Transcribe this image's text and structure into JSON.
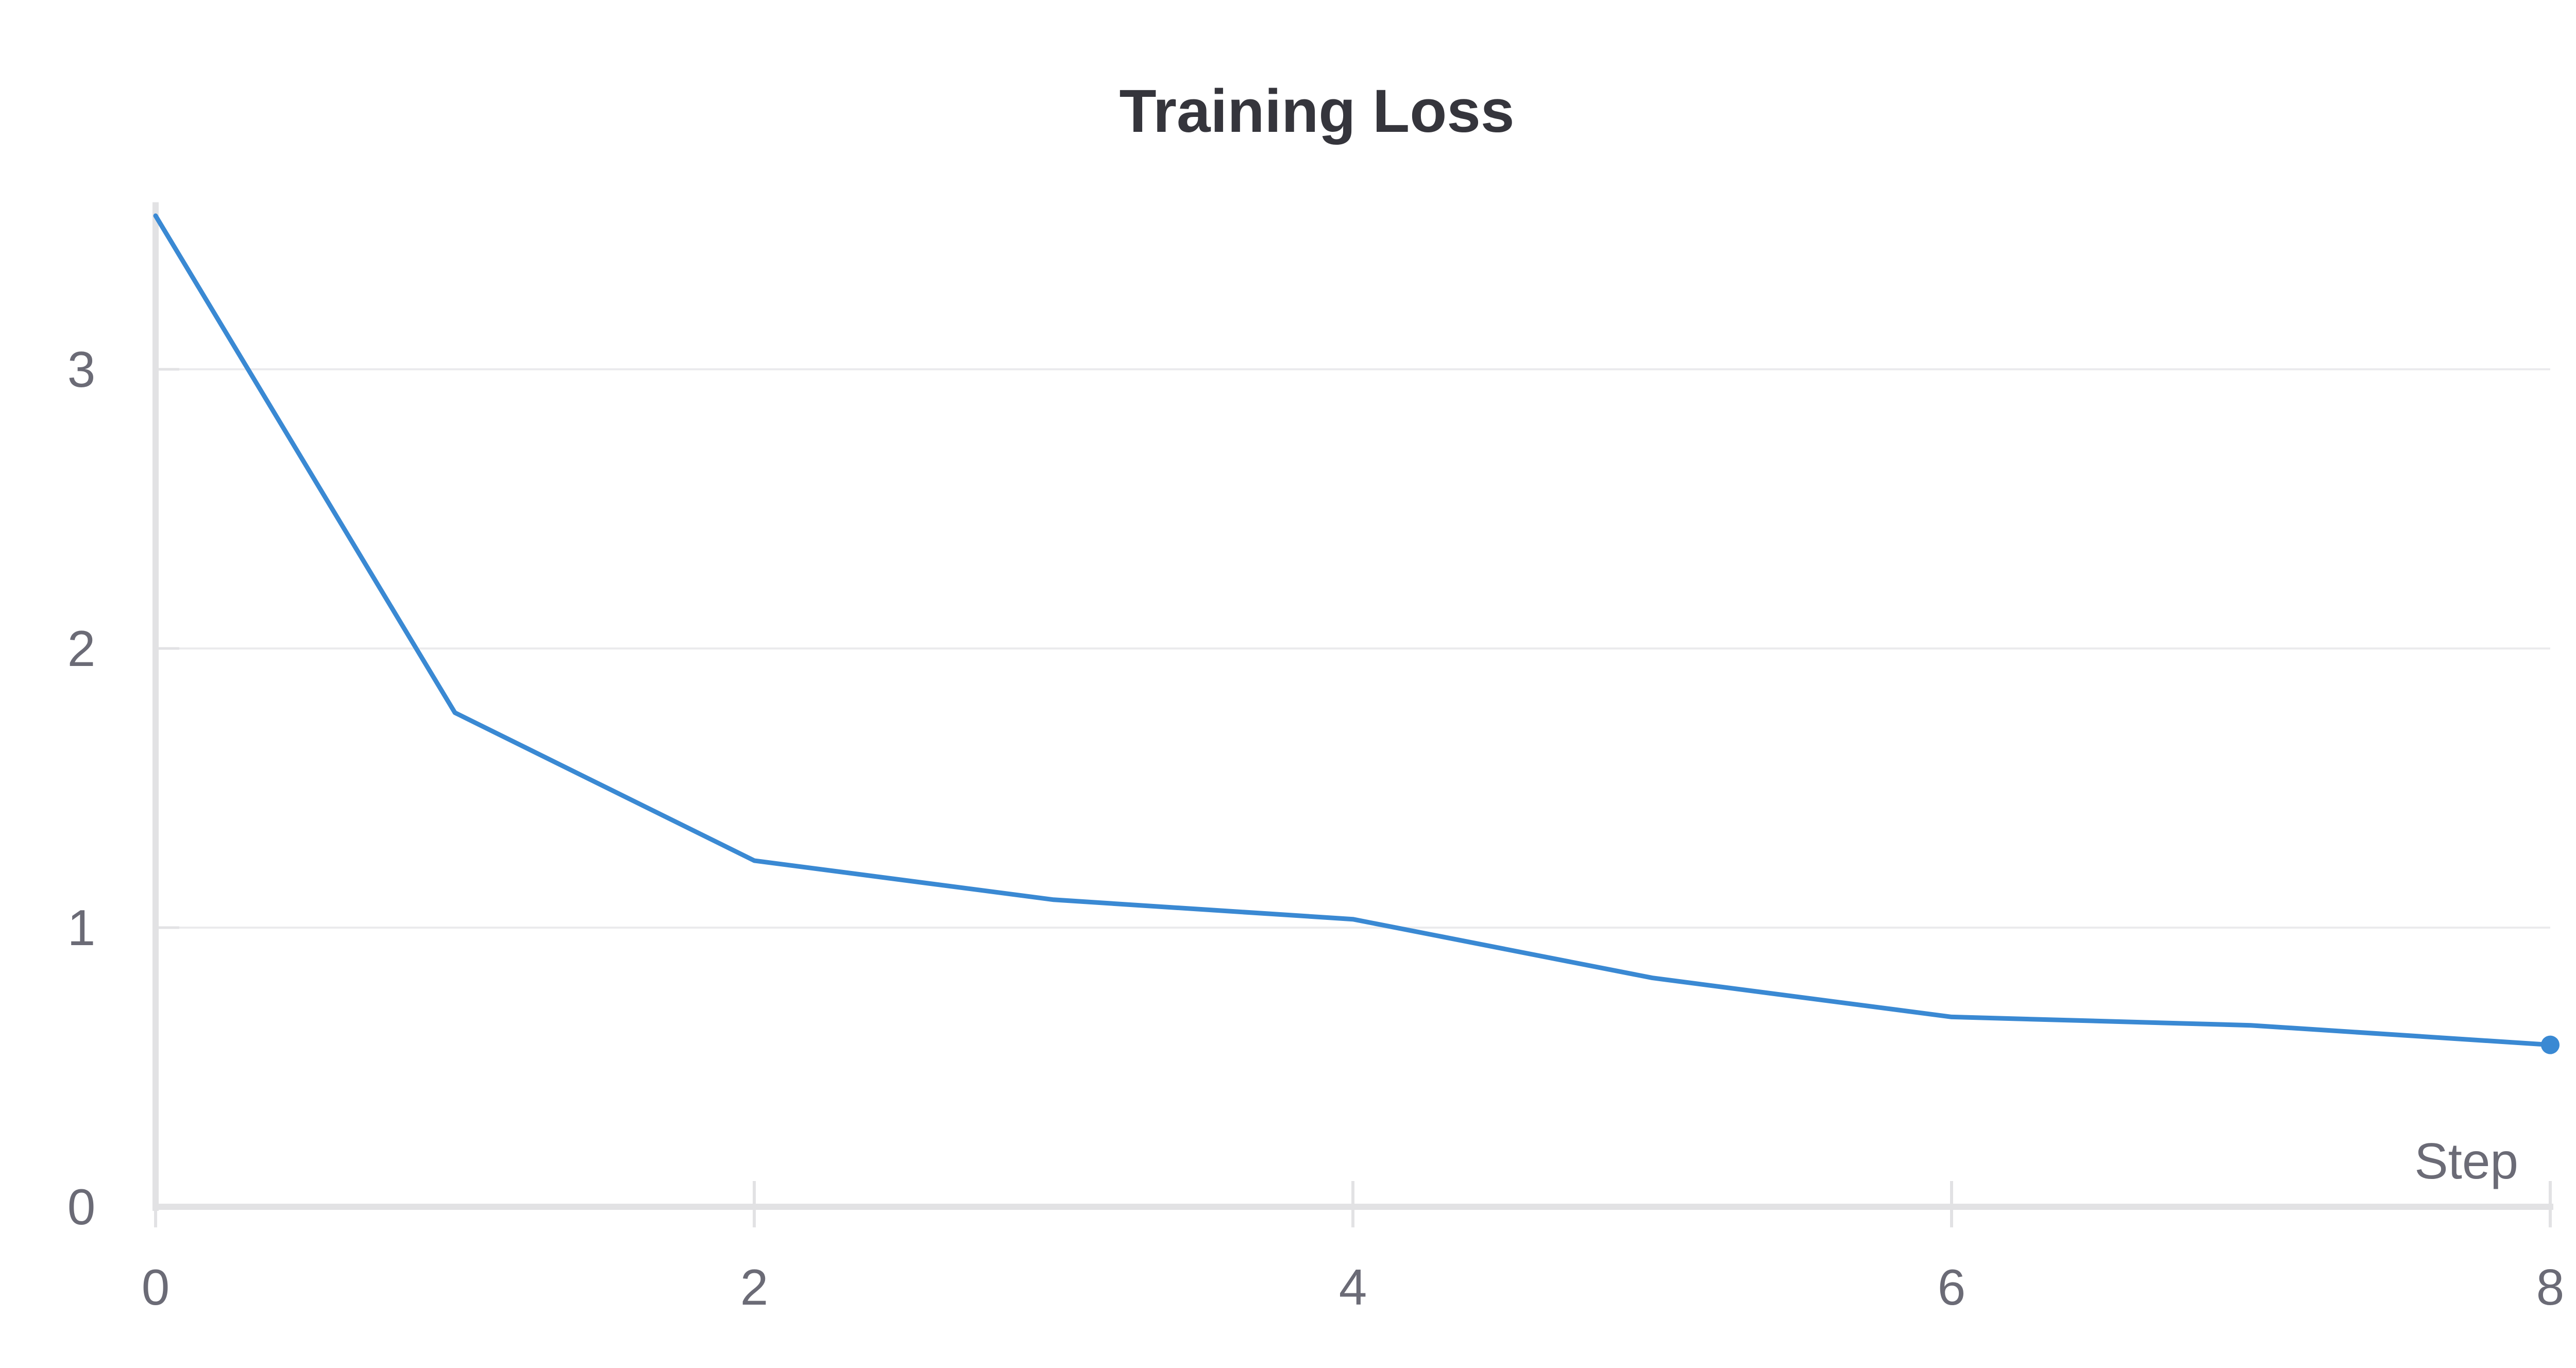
{
  "chart_data": {
    "type": "line",
    "title": "Training Loss",
    "xlabel": "Step",
    "ylabel": "",
    "xlim": [
      0,
      8
    ],
    "ylim": [
      0,
      3.58
    ],
    "xticks": [
      0,
      2,
      4,
      6,
      8
    ],
    "yticks": [
      0,
      1,
      2,
      3
    ],
    "grid": true,
    "series": [
      {
        "x": [
          0,
          1,
          2,
          3,
          4,
          5,
          6,
          7,
          8
        ],
        "values": [
          3.55,
          1.77,
          1.24,
          1.1,
          1.03,
          0.82,
          0.68,
          0.65,
          0.58
        ],
        "color": "#3a89d3",
        "end_marker": true
      }
    ]
  },
  "colors": {
    "axis": "#e2e2e4",
    "grid": "#ebebed",
    "line": "#3a89d3",
    "title": "#35353c",
    "tick_text": "#6b6b76"
  }
}
